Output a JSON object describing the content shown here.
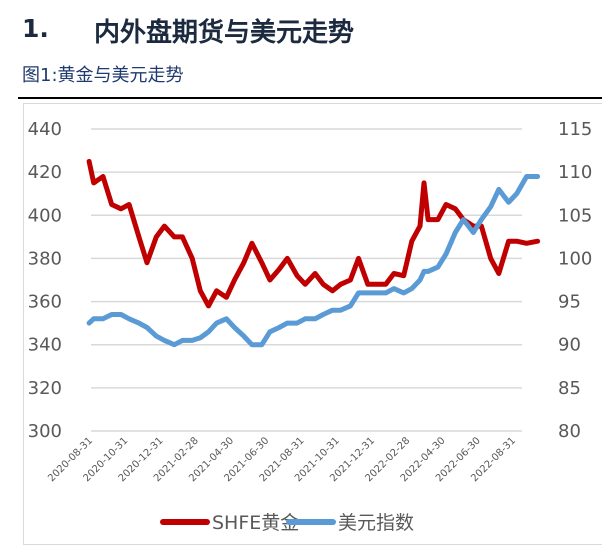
{
  "heading": {
    "number": "1.",
    "title": "内外盘期货与美元走势"
  },
  "figure_title": "图1:黄金与美元走势",
  "chart_data": {
    "type": "line",
    "title": "",
    "grid": true,
    "legend_position": "bottom",
    "left_axis": {
      "ylim": [
        300,
        440
      ],
      "ticks": [
        "300",
        "320",
        "340",
        "360",
        "380",
        "400",
        "420",
        "440"
      ]
    },
    "right_axis": {
      "ylim": [
        80,
        115
      ],
      "ticks": [
        "80",
        "85",
        "90",
        "95",
        "100",
        "105",
        "110",
        "115"
      ]
    },
    "x_tick_labels": [
      "2020-08-31",
      "2020-10-31",
      "2020-12-31",
      "2021-02-28",
      "2021-04-30",
      "2021-06-30",
      "2021-08-31",
      "2021-10-31",
      "2021-12-31",
      "2022-02-28",
      "2022-04-30",
      "2022-06-30",
      "2022-08-31"
    ],
    "x": [
      "2020-08-07",
      "2020-08-15",
      "2020-08-31",
      "2020-09-15",
      "2020-10-01",
      "2020-10-15",
      "2020-11-01",
      "2020-11-15",
      "2020-12-01",
      "2020-12-15",
      "2021-01-01",
      "2021-01-15",
      "2021-02-01",
      "2021-02-15",
      "2021-03-01",
      "2021-03-15",
      "2021-04-01",
      "2021-04-15",
      "2021-05-01",
      "2021-05-15",
      "2021-06-01",
      "2021-06-15",
      "2021-07-01",
      "2021-07-15",
      "2021-08-01",
      "2021-08-15",
      "2021-09-01",
      "2021-09-15",
      "2021-10-01",
      "2021-10-15",
      "2021-11-01",
      "2021-11-15",
      "2021-12-01",
      "2021-12-15",
      "2022-01-01",
      "2022-01-15",
      "2022-02-01",
      "2022-02-15",
      "2022-03-01",
      "2022-03-08",
      "2022-03-15",
      "2022-04-01",
      "2022-04-15",
      "2022-05-01",
      "2022-05-15",
      "2022-06-01",
      "2022-06-15",
      "2022-07-01",
      "2022-07-15",
      "2022-08-01",
      "2022-08-15",
      "2022-09-01",
      "2022-09-20"
    ],
    "series": [
      {
        "name": "SHFE黄金",
        "axis": "left",
        "color": "#C00000",
        "values": [
          425,
          415,
          418,
          405,
          403,
          405,
          390,
          378,
          390,
          395,
          390,
          390,
          380,
          365,
          358,
          365,
          362,
          370,
          378,
          387,
          378,
          370,
          375,
          380,
          372,
          368,
          373,
          368,
          365,
          368,
          370,
          380,
          368,
          368,
          368,
          373,
          372,
          388,
          395,
          415,
          398,
          398,
          405,
          403,
          398,
          395,
          395,
          380,
          373,
          388,
          388,
          387,
          388
        ]
      },
      {
        "name": "美元指数",
        "axis": "right",
        "color": "#5B9BD5",
        "values": [
          92.5,
          93,
          93,
          93.5,
          93.5,
          93,
          92.5,
          92,
          91,
          90.5,
          90,
          90.5,
          90.5,
          90.8,
          91.5,
          92.5,
          93,
          92,
          91,
          90,
          90,
          91.5,
          92,
          92.5,
          92.5,
          93,
          93,
          93.5,
          94,
          94,
          94.5,
          96,
          96,
          96,
          96,
          96.5,
          96,
          96.5,
          97.5,
          98.5,
          98.5,
          99,
          100.5,
          103,
          104.5,
          103,
          104.5,
          106,
          108,
          106.5,
          107.5,
          109.5,
          109.5
        ]
      }
    ]
  }
}
